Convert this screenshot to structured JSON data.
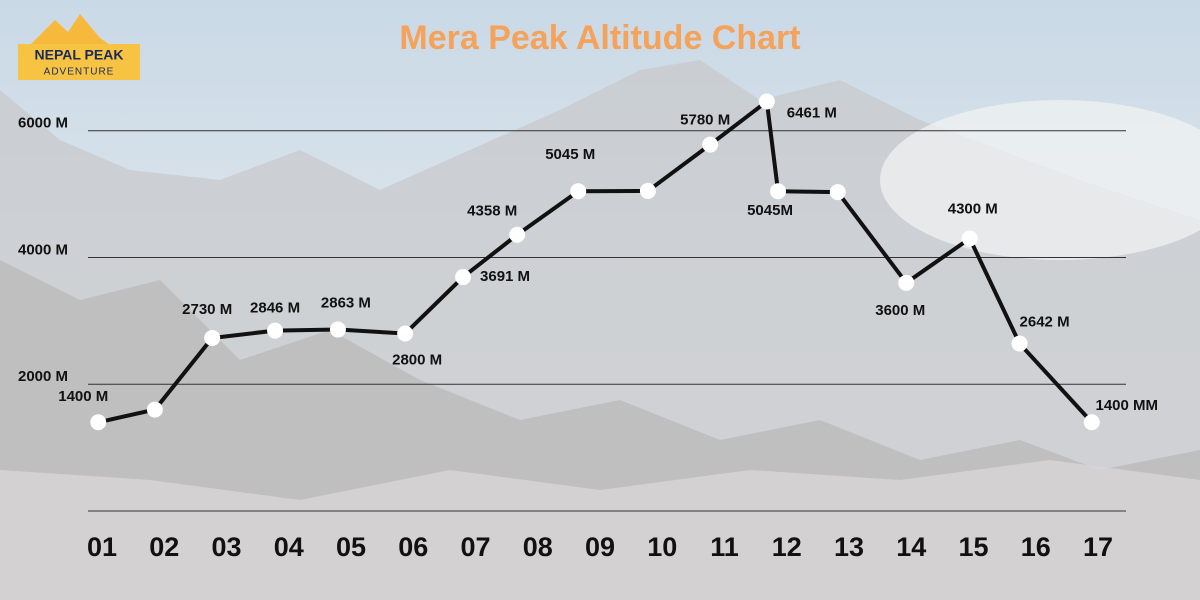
{
  "logo": {
    "line1": "NEPAL PEAK",
    "line2": "ADVENTURE"
  },
  "chart_data": {
    "type": "line",
    "title": "Mera Peak Altitude Chart",
    "x": [
      0.94,
      1.85,
      2.77,
      3.78,
      4.79,
      5.87,
      6.8,
      7.67,
      8.65,
      9.77,
      10.77,
      11.68,
      11.86,
      12.82,
      13.92,
      14.94,
      15.74,
      16.9
    ],
    "series": [
      {
        "name": null,
        "color": "#111111",
        "values": [
          1400,
          1600,
          2730,
          2846,
          2863,
          2800,
          3691,
          4358,
          5045,
          5050,
          5780,
          6461,
          5045,
          5030,
          3600,
          4300,
          2642,
          1400
        ],
        "value_labels": [
          "1400 M",
          null,
          "2730 M",
          "2846 M",
          "2863 M",
          "2800 M",
          "3691 M",
          "4358 M",
          "5045 M",
          null,
          "5780 M",
          "6461 M",
          "5045M",
          null,
          "3600 M",
          "4300 M",
          "2642 M",
          "1400 MM"
        ]
      }
    ],
    "xlim": [
      0,
      18
    ],
    "xticks": [
      {
        "value": 1,
        "label": "01"
      },
      {
        "value": 2,
        "label": "02"
      },
      {
        "value": 3,
        "label": "03"
      },
      {
        "value": 4,
        "label": "04"
      },
      {
        "value": 5,
        "label": "05"
      },
      {
        "value": 6,
        "label": "06"
      },
      {
        "value": 7,
        "label": "07"
      },
      {
        "value": 8,
        "label": "08"
      },
      {
        "value": 9,
        "label": "09"
      },
      {
        "value": 10,
        "label": "10"
      },
      {
        "value": 11,
        "label": "11"
      },
      {
        "value": 12,
        "label": "12"
      },
      {
        "value": 13,
        "label": "13"
      },
      {
        "value": 14,
        "label": "14"
      },
      {
        "value": 15,
        "label": "15"
      },
      {
        "value": 16,
        "label": "16"
      },
      {
        "value": 17,
        "label": "17"
      }
    ],
    "ylim": [
      0,
      6800
    ],
    "yticks": [
      {
        "value": 2000,
        "label": "2000 M"
      },
      {
        "value": 4000,
        "label": "4000 M"
      },
      {
        "value": 6000,
        "label": "6000 M"
      }
    ],
    "grid": true
  }
}
